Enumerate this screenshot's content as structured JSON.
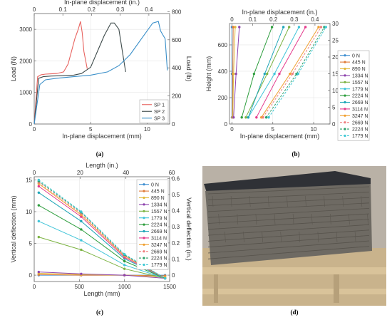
{
  "captions": {
    "a": "(a)",
    "b": "(b)",
    "c": "(c)",
    "d": "(d)"
  },
  "photo": {
    "colors": {
      "sky": "#b9b1a6",
      "roof": "#2f3136",
      "wall": "#6e6a63",
      "floor": "#c9b38c",
      "beam": "#d9c39a"
    }
  },
  "chart_data": [
    {
      "id": "a",
      "type": "line",
      "xlabel": "In-plane displacement (mm)",
      "ylabel": "Load (N)",
      "x2label": "In-plane displacement (in.)",
      "y2label": "Load (lb)",
      "xlim": [
        0,
        12
      ],
      "ylim": [
        0,
        3500
      ],
      "xticks": [
        0,
        5,
        10
      ],
      "yticks": [
        0,
        1000,
        2000,
        3000
      ],
      "x2lim": [
        0,
        0.4724
      ],
      "x2ticks": [
        0,
        0.1,
        0.2,
        0.3,
        0.4
      ],
      "x2ticklabels": [
        "0",
        "0.1",
        "0.2",
        "0.3",
        "0.4"
      ],
      "y2lim": [
        0,
        786.8
      ],
      "y2ticks": [
        0,
        200,
        400,
        600,
        800
      ],
      "y2ticklabels": [
        "0",
        "200",
        "400",
        "600",
        "800"
      ],
      "legend": "bottom-right",
      "series": [
        {
          "name": "SP 1",
          "color": "#e8635f",
          "x": [
            0,
            0.3,
            0.6,
            1.0,
            1.5,
            2.0,
            2.6,
            3.0,
            3.3,
            3.6,
            3.9,
            4.1,
            4.25,
            4.4,
            4.7
          ],
          "y": [
            0,
            1500,
            1560,
            1580,
            1590,
            1600,
            1650,
            1900,
            2300,
            2700,
            3000,
            3250,
            2900,
            2300,
            1750
          ]
        },
        {
          "name": "SP 2",
          "color": "#3d4a4a",
          "x": [
            0,
            0.4,
            0.8,
            1.5,
            2.5,
            3.5,
            4.2,
            5.0,
            5.6,
            6.2,
            6.8,
            7.1,
            7.5,
            7.9,
            8.1
          ],
          "y": [
            0,
            1450,
            1500,
            1520,
            1530,
            1550,
            1600,
            1800,
            2300,
            2800,
            3200,
            3200,
            3000,
            2100,
            1650
          ]
        },
        {
          "name": "SP 3",
          "color": "#3a8fc9",
          "x": [
            0,
            0.5,
            1.0,
            2.0,
            3.5,
            5.0,
            6.5,
            7.5,
            8.5,
            9.5,
            10.5,
            11.0,
            11.2,
            11.6,
            11.8
          ],
          "y": [
            0,
            1250,
            1400,
            1450,
            1500,
            1550,
            1650,
            1850,
            2200,
            2700,
            3200,
            3250,
            2950,
            2700,
            1700
          ]
        }
      ]
    },
    {
      "id": "b",
      "type": "line",
      "xlabel": "In-plane displacement (mm)",
      "ylabel": "Height (mm)",
      "x2label": "In-plane displacement (in.)",
      "y2label": "Height (in.)",
      "xlim": [
        -0.3,
        12
      ],
      "ylim": [
        0,
        762
      ],
      "xticks": [
        0,
        5,
        10
      ],
      "yticks": [
        0,
        200,
        400,
        600
      ],
      "x2lim": [
        -0.0118,
        0.4724
      ],
      "x2ticks": [
        0,
        0.1,
        0.2,
        0.3,
        0.4
      ],
      "x2ticklabels": [
        "0",
        "0.1",
        "0.2",
        "0.3",
        "0.4"
      ],
      "y2lim": [
        0,
        30
      ],
      "y2ticks": [
        0,
        5,
        10,
        15,
        20,
        25,
        30
      ],
      "y2ticklabels": [
        "0",
        "5",
        "10",
        "15",
        "20",
        "25",
        "30"
      ],
      "legend": "right",
      "y_levels": [
        50,
        380,
        735
      ],
      "series": [
        {
          "name": "0 N",
          "color": "#3f8fd0",
          "dash": false,
          "x": [
            0,
            0,
            0
          ]
        },
        {
          "name": "445 N",
          "color": "#e07b39",
          "dash": false,
          "x": [
            0.05,
            0.1,
            0.15
          ]
        },
        {
          "name": "890 N",
          "color": "#e2b93b",
          "dash": false,
          "x": [
            0.1,
            0.2,
            0.4
          ]
        },
        {
          "name": "1334 N",
          "color": "#8e44ad",
          "dash": false,
          "x": [
            0.2,
            0.5,
            0.9
          ]
        },
        {
          "name": "1557 N",
          "color": "#7cb342",
          "dash": false,
          "x": [
            1.7,
            4.3,
            7.0
          ]
        },
        {
          "name": "1779 N",
          "color": "#40c4d8",
          "dash": false,
          "x": [
            2.0,
            5.2,
            8.2
          ]
        },
        {
          "name": "2224 N",
          "color": "#2e9e3e",
          "dash": false,
          "x": [
            1.2,
            2.7,
            4.9
          ]
        },
        {
          "name": "2669 N",
          "color": "#1fa6b8",
          "dash": false,
          "x": [
            2.0,
            4.0,
            6.3
          ]
        },
        {
          "name": "3114 N",
          "color": "#e43a8c",
          "dash": false,
          "x": [
            3.0,
            5.8,
            9.0
          ]
        },
        {
          "name": "3247 N",
          "color": "#f0a030",
          "dash": false,
          "x": [
            3.6,
            7.1,
            10.6
          ]
        },
        {
          "name": "2669 N",
          "color": "#f08080",
          "dash": true,
          "x": [
            3.8,
            7.4,
            10.9
          ]
        },
        {
          "name": "2224 N",
          "color": "#2ea06a",
          "dash": true,
          "x": [
            4.2,
            7.9,
            11.3
          ]
        },
        {
          "name": "1779 N",
          "color": "#3fc8d4",
          "dash": true,
          "x": [
            4.5,
            8.1,
            11.5
          ]
        }
      ]
    },
    {
      "id": "c",
      "type": "line",
      "xlabel": "Length (mm)",
      "ylabel": "Vertical deflection (mm)",
      "x2label": "Length (in.)",
      "y2label": "Vertical deflection (in.)",
      "xlim": [
        0,
        1500
      ],
      "ylim": [
        -1,
        15.5
      ],
      "xticks": [
        0,
        500,
        1000,
        1500
      ],
      "yticks": [
        0,
        5,
        10,
        15
      ],
      "x2lim": [
        0,
        59.06
      ],
      "x2ticks": [
        0,
        20,
        40,
        60
      ],
      "x2ticklabels": [
        "0",
        "20",
        "40",
        "60"
      ],
      "y2lim": [
        -0.0394,
        0.6102
      ],
      "y2ticks": [
        0,
        0.1,
        0.2,
        0.3,
        0.4,
        0.5,
        0.6
      ],
      "y2ticklabels": [
        "0",
        "0.1",
        "0.2",
        "0.3",
        "0.4",
        "0.5",
        "0.6"
      ],
      "legend": "top-right",
      "x_positions": [
        50,
        520,
        1000,
        1450
      ],
      "series": [
        {
          "name": "0 N",
          "color": "#3f8fd0",
          "dash": false,
          "y": [
            0,
            0,
            0,
            0
          ]
        },
        {
          "name": "445 N",
          "color": "#e07b39",
          "dash": false,
          "y": [
            0.1,
            0,
            0,
            -0.1
          ]
        },
        {
          "name": "890 N",
          "color": "#e2b93b",
          "dash": false,
          "y": [
            0.3,
            0.1,
            0,
            -0.3
          ]
        },
        {
          "name": "1334 N",
          "color": "#8e44ad",
          "dash": false,
          "y": [
            0.5,
            0.2,
            0,
            -0.5
          ]
        },
        {
          "name": "1557 N",
          "color": "#7cb342",
          "dash": false,
          "y": [
            6.0,
            4.0,
            1.0,
            -0.5
          ]
        },
        {
          "name": "1779 N",
          "color": "#40c4d8",
          "dash": false,
          "y": [
            8.5,
            5.5,
            1.6,
            -0.5
          ]
        },
        {
          "name": "2224 N",
          "color": "#2e9e3e",
          "dash": false,
          "y": [
            11.0,
            7.2,
            2.2,
            -0.5
          ]
        },
        {
          "name": "2669 N",
          "color": "#1fa6b8",
          "dash": false,
          "y": [
            13.0,
            8.5,
            2.6,
            -0.5
          ]
        },
        {
          "name": "3114 N",
          "color": "#e43a8c",
          "dash": false,
          "y": [
            14.0,
            9.2,
            2.8,
            -0.5
          ]
        },
        {
          "name": "3247 N",
          "color": "#f0a030",
          "dash": false,
          "y": [
            14.4,
            9.5,
            3.0,
            -0.5
          ]
        },
        {
          "name": "2669 N",
          "color": "#f08080",
          "dash": true,
          "y": [
            14.6,
            9.7,
            3.1,
            -0.5
          ]
        },
        {
          "name": "2224 N",
          "color": "#2ea06a",
          "dash": true,
          "y": [
            14.8,
            9.9,
            3.2,
            -0.5
          ]
        },
        {
          "name": "1779 N",
          "color": "#3fc8d4",
          "dash": true,
          "y": [
            15.0,
            10.0,
            3.3,
            -0.5
          ]
        }
      ]
    }
  ]
}
